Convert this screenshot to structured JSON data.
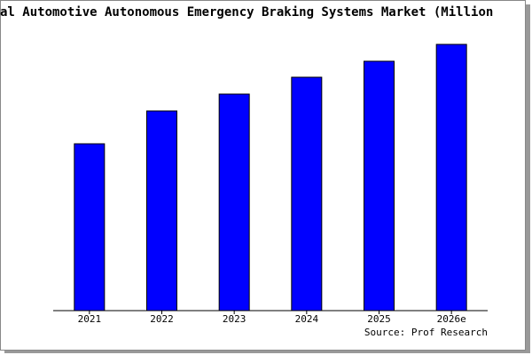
{
  "chart_data": {
    "type": "bar",
    "title": "al Automotive Autonomous Emergency Braking Systems Market (Million",
    "source": "Source: Prof Research",
    "categories": [
      "2021",
      "2022",
      "2023",
      "2024",
      "2025",
      "2026e"
    ],
    "values": [
      188,
      225,
      244,
      263,
      281,
      300
    ],
    "color": "#0000ff",
    "ylim": [
      0,
      300
    ]
  }
}
